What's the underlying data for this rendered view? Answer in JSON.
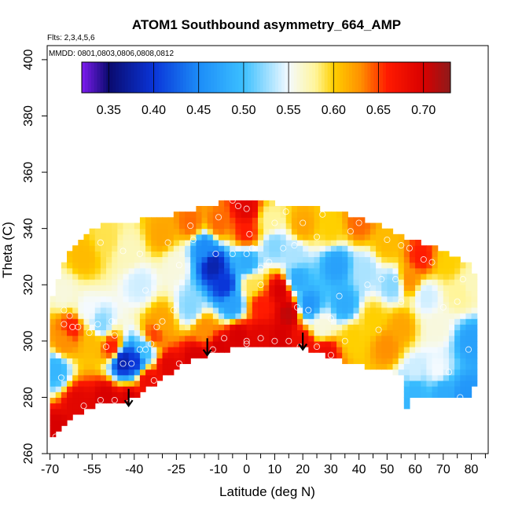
{
  "chart_data": {
    "type": "heatmap",
    "title": "ATOM1 Southbound asymmetry_664_AMP",
    "flights_note": "Flts: 2,3,4,5,6",
    "mmdd_note": "MMDD: 0801,0803,0806,0808,0812",
    "xlabel": "Latitude (deg N)",
    "ylabel": "Theta (C)",
    "xlim": [
      -71,
      86
    ],
    "ylim": [
      260,
      405
    ],
    "x_ticks": [
      -70,
      -55,
      -40,
      -25,
      -10,
      0,
      10,
      20,
      30,
      40,
      50,
      60,
      70,
      80
    ],
    "x_minor_ticks": [
      -65,
      -60,
      -50,
      -45,
      -35,
      -30,
      -20,
      -15,
      -5,
      5,
      15,
      25,
      35,
      45,
      55,
      65,
      75,
      85
    ],
    "y_ticks": [
      260,
      280,
      300,
      320,
      340,
      360,
      380,
      400
    ],
    "colorbar": {
      "range": [
        0.32,
        0.73
      ],
      "ticks": [
        0.35,
        0.4,
        0.45,
        0.5,
        0.55,
        0.6,
        0.65,
        0.7
      ],
      "tick_labels": [
        "0.35",
        "0.40",
        "0.45",
        "0.50",
        "0.55",
        "0.60",
        "0.65",
        "0.70"
      ],
      "stops": [
        {
          "v": 0.32,
          "c": "#7e1cf0"
        },
        {
          "v": 0.35,
          "c": "#0a0a6e"
        },
        {
          "v": 0.4,
          "c": "#0a35d8"
        },
        {
          "v": 0.45,
          "c": "#1c8cf8"
        },
        {
          "v": 0.5,
          "c": "#3cc0ff"
        },
        {
          "v": 0.55,
          "c": "#f4faff"
        },
        {
          "v": 0.58,
          "c": "#fff59a"
        },
        {
          "v": 0.6,
          "c": "#ffd000"
        },
        {
          "v": 0.63,
          "c": "#ff9000"
        },
        {
          "v": 0.66,
          "c": "#ff1a00"
        },
        {
          "v": 0.7,
          "c": "#d80000"
        },
        {
          "v": 0.73,
          "c": "#8e1a1a"
        }
      ]
    },
    "domain_top": [
      [
        -70,
        312
      ],
      [
        -67,
        322
      ],
      [
        -64,
        330
      ],
      [
        -58,
        338
      ],
      [
        -52,
        341
      ],
      [
        -45,
        342
      ],
      [
        -40,
        342
      ],
      [
        -35,
        344
      ],
      [
        -25,
        345
      ],
      [
        -15,
        348
      ],
      [
        -5,
        350
      ],
      [
        5,
        350
      ],
      [
        15,
        348
      ],
      [
        25,
        347
      ],
      [
        35,
        345
      ],
      [
        45,
        342
      ],
      [
        55,
        337
      ],
      [
        65,
        334
      ],
      [
        75,
        329
      ],
      [
        80,
        327
      ],
      [
        82,
        320
      ]
    ],
    "domain_bottom": [
      [
        -70,
        265
      ],
      [
        -60,
        274
      ],
      [
        -50,
        279
      ],
      [
        -42,
        279
      ],
      [
        -30,
        287
      ],
      [
        -20,
        293
      ],
      [
        -10,
        296
      ],
      [
        0,
        299
      ],
      [
        10,
        299
      ],
      [
        20,
        298
      ],
      [
        30,
        294
      ],
      [
        38,
        292
      ],
      [
        48,
        290
      ],
      [
        55,
        288
      ],
      [
        56,
        276
      ],
      [
        58,
        276
      ],
      [
        58,
        280
      ],
      [
        80,
        280
      ],
      [
        82,
        287
      ]
    ],
    "anchors": [
      {
        "x": -68,
        "y": 268,
        "v": 0.7
      },
      {
        "x": -60,
        "y": 278,
        "v": 0.69
      },
      {
        "x": -50,
        "y": 280,
        "v": 0.7
      },
      {
        "x": -42,
        "y": 279,
        "v": 0.7
      },
      {
        "x": -35,
        "y": 286,
        "v": 0.68
      },
      {
        "x": -28,
        "y": 291,
        "v": 0.69
      },
      {
        "x": -18,
        "y": 294,
        "v": 0.7
      },
      {
        "x": -10,
        "y": 297,
        "v": 0.7
      },
      {
        "x": -3,
        "y": 302,
        "v": 0.7
      },
      {
        "x": 5,
        "y": 302,
        "v": 0.69
      },
      {
        "x": 12,
        "y": 301,
        "v": 0.7
      },
      {
        "x": 20,
        "y": 299,
        "v": 0.68
      },
      {
        "x": 28,
        "y": 296,
        "v": 0.68
      },
      {
        "x": -68,
        "y": 290,
        "v": 0.49
      },
      {
        "x": -65,
        "y": 300,
        "v": 0.63
      },
      {
        "x": -62,
        "y": 305,
        "v": 0.66
      },
      {
        "x": -55,
        "y": 300,
        "v": 0.61
      },
      {
        "x": -48,
        "y": 298,
        "v": 0.66
      },
      {
        "x": -44,
        "y": 293,
        "v": 0.38
      },
      {
        "x": -40,
        "y": 293,
        "v": 0.4
      },
      {
        "x": -36,
        "y": 297,
        "v": 0.5
      },
      {
        "x": -33,
        "y": 302,
        "v": 0.65
      },
      {
        "x": -30,
        "y": 307,
        "v": 0.62
      },
      {
        "x": -52,
        "y": 306,
        "v": 0.52
      },
      {
        "x": -57,
        "y": 311,
        "v": 0.55
      },
      {
        "x": -65,
        "y": 317,
        "v": 0.56
      },
      {
        "x": -58,
        "y": 330,
        "v": 0.61
      },
      {
        "x": -50,
        "y": 336,
        "v": 0.59
      },
      {
        "x": -38,
        "y": 320,
        "v": 0.54
      },
      {
        "x": -42,
        "y": 332,
        "v": 0.57
      },
      {
        "x": -30,
        "y": 338,
        "v": 0.62
      },
      {
        "x": -20,
        "y": 342,
        "v": 0.64
      },
      {
        "x": -25,
        "y": 327,
        "v": 0.56
      },
      {
        "x": -20,
        "y": 312,
        "v": 0.52
      },
      {
        "x": -15,
        "y": 304,
        "v": 0.63
      },
      {
        "x": -15,
        "y": 333,
        "v": 0.45
      },
      {
        "x": -12,
        "y": 327,
        "v": 0.38
      },
      {
        "x": -8,
        "y": 320,
        "v": 0.4
      },
      {
        "x": -5,
        "y": 313,
        "v": 0.47
      },
      {
        "x": 0,
        "y": 328,
        "v": 0.48
      },
      {
        "x": 2,
        "y": 320,
        "v": 0.59
      },
      {
        "x": 5,
        "y": 313,
        "v": 0.66
      },
      {
        "x": 12,
        "y": 318,
        "v": 0.7
      },
      {
        "x": 15,
        "y": 310,
        "v": 0.71
      },
      {
        "x": -10,
        "y": 342,
        "v": 0.64
      },
      {
        "x": 0,
        "y": 347,
        "v": 0.69
      },
      {
        "x": 0,
        "y": 339,
        "v": 0.66
      },
      {
        "x": 8,
        "y": 343,
        "v": 0.58
      },
      {
        "x": 10,
        "y": 334,
        "v": 0.52
      },
      {
        "x": 17,
        "y": 331,
        "v": 0.53
      },
      {
        "x": 20,
        "y": 341,
        "v": 0.62
      },
      {
        "x": 18,
        "y": 322,
        "v": 0.48
      },
      {
        "x": 22,
        "y": 313,
        "v": 0.46
      },
      {
        "x": 27,
        "y": 305,
        "v": 0.56
      },
      {
        "x": 30,
        "y": 340,
        "v": 0.6
      },
      {
        "x": 32,
        "y": 327,
        "v": 0.47
      },
      {
        "x": 35,
        "y": 313,
        "v": 0.48
      },
      {
        "x": 38,
        "y": 302,
        "v": 0.6
      },
      {
        "x": 40,
        "y": 342,
        "v": 0.64
      },
      {
        "x": 42,
        "y": 325,
        "v": 0.53
      },
      {
        "x": 45,
        "y": 308,
        "v": 0.6
      },
      {
        "x": 50,
        "y": 335,
        "v": 0.61
      },
      {
        "x": 52,
        "y": 320,
        "v": 0.52
      },
      {
        "x": 50,
        "y": 298,
        "v": 0.63
      },
      {
        "x": 55,
        "y": 305,
        "v": 0.62
      },
      {
        "x": 58,
        "y": 322,
        "v": 0.63
      },
      {
        "x": 62,
        "y": 330,
        "v": 0.66
      },
      {
        "x": 64,
        "y": 316,
        "v": 0.54
      },
      {
        "x": 68,
        "y": 305,
        "v": 0.56
      },
      {
        "x": 72,
        "y": 328,
        "v": 0.6
      },
      {
        "x": 76,
        "y": 317,
        "v": 0.58
      },
      {
        "x": 80,
        "y": 320,
        "v": 0.57
      },
      {
        "x": 80,
        "y": 300,
        "v": 0.47
      },
      {
        "x": 68,
        "y": 290,
        "v": 0.55
      },
      {
        "x": 60,
        "y": 289,
        "v": 0.54
      },
      {
        "x": 60,
        "y": 283,
        "v": 0.49
      },
      {
        "x": 70,
        "y": 282,
        "v": 0.48
      },
      {
        "x": 78,
        "y": 281,
        "v": 0.46
      },
      {
        "x": 58,
        "y": 277,
        "v": 0.49
      }
    ],
    "observation_points": [
      [
        -68,
        266
      ],
      [
        -58,
        277
      ],
      [
        -52,
        279
      ],
      [
        -47,
        279
      ],
      [
        -42,
        278
      ],
      [
        -33,
        286
      ],
      [
        -24,
        292
      ],
      [
        -12,
        297
      ],
      [
        -8,
        301
      ],
      [
        0,
        299
      ],
      [
        0,
        300
      ],
      [
        5,
        301
      ],
      [
        10,
        300
      ],
      [
        15,
        300
      ],
      [
        19,
        298
      ],
      [
        25,
        298
      ],
      [
        30,
        295
      ],
      [
        -66,
        287
      ],
      [
        -65,
        306
      ],
      [
        -63,
        309
      ],
      [
        -60,
        305
      ],
      [
        -56,
        303
      ],
      [
        -53,
        306
      ],
      [
        -48,
        307
      ],
      [
        -47,
        302
      ],
      [
        -44,
        292
      ],
      [
        -41,
        292
      ],
      [
        -38,
        297
      ],
      [
        -36,
        297
      ],
      [
        -34,
        299
      ],
      [
        -32,
        305
      ],
      [
        -30,
        307
      ],
      [
        -26,
        311
      ],
      [
        -62,
        305
      ],
      [
        -50,
        298
      ],
      [
        -65,
        311
      ],
      [
        -58,
        341
      ],
      [
        -52,
        335
      ],
      [
        -44,
        332
      ],
      [
        -36,
        318
      ],
      [
        -24,
        327
      ],
      [
        -19,
        336
      ],
      [
        -11,
        331
      ],
      [
        -5,
        331
      ],
      [
        0,
        331
      ],
      [
        1,
        338
      ],
      [
        5,
        326
      ],
      [
        8,
        328
      ],
      [
        10,
        342
      ],
      [
        13,
        333
      ],
      [
        14,
        346
      ],
      [
        17,
        334
      ],
      [
        -38,
        331
      ],
      [
        -28,
        335
      ],
      [
        -20,
        341
      ],
      [
        -10,
        344
      ],
      [
        -5,
        350
      ],
      [
        -3,
        348
      ],
      [
        0,
        347
      ],
      [
        2,
        333
      ],
      [
        5,
        320
      ],
      [
        20,
        342
      ],
      [
        25,
        337
      ],
      [
        27,
        345
      ],
      [
        33,
        316
      ],
      [
        37,
        339
      ],
      [
        40,
        342
      ],
      [
        43,
        320
      ],
      [
        48,
        322
      ],
      [
        50,
        336
      ],
      [
        53,
        322
      ],
      [
        55,
        334
      ],
      [
        58,
        333
      ],
      [
        63,
        329
      ],
      [
        66,
        328
      ],
      [
        70,
        312
      ],
      [
        75,
        314
      ],
      [
        77,
        322
      ],
      [
        79,
        297
      ],
      [
        76,
        280
      ],
      [
        72,
        289
      ],
      [
        55,
        314
      ],
      [
        47,
        304
      ],
      [
        35,
        300
      ],
      [
        30,
        308
      ],
      [
        22,
        311
      ],
      [
        18,
        312
      ]
    ],
    "arrows": [
      {
        "x": -42,
        "y_start": 283,
        "y_end": 277
      },
      {
        "x": -14,
        "y_start": 301,
        "y_end": 295
      },
      {
        "x": 20,
        "y_start": 303,
        "y_end": 297
      }
    ]
  }
}
